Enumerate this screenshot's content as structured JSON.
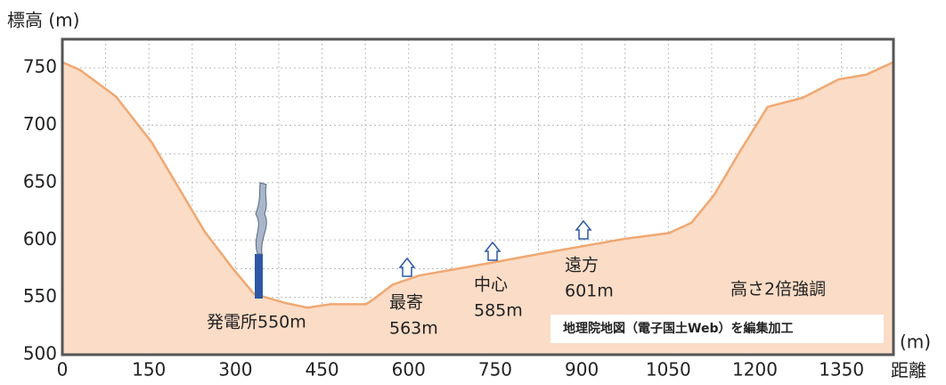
{
  "chart_data": {
    "type": "area",
    "y_label": "標高 (m)",
    "x_unit": "(m)",
    "x_label": "距離",
    "x": [
      0,
      31,
      93,
      155,
      201,
      247,
      294,
      332,
      387,
      425,
      464,
      526,
      541,
      572,
      618,
      742,
      850,
      974,
      1051,
      1090,
      1129,
      1175,
      1222,
      1283,
      1345,
      1392,
      1440
    ],
    "series": [
      {
        "name": "標高",
        "color": "#f0a872",
        "values": [
          755,
          748,
          725,
          685,
          646,
          607,
          576,
          553,
          545,
          541,
          544,
          544,
          549,
          561,
          569,
          580,
          590,
          601,
          606,
          615,
          639,
          678,
          716,
          724,
          740,
          744,
          755
        ]
      }
    ],
    "xlim": [
      0,
      1440
    ],
    "ylim": [
      500,
      775
    ],
    "xticks": [
      0,
      150,
      300,
      450,
      600,
      750,
      900,
      1050,
      1200,
      1350
    ],
    "yticks": [
      500,
      550,
      600,
      650,
      700,
      750
    ],
    "grid": true,
    "annotations": [
      {
        "lines": [
          "発電所550m"
        ]
      },
      {
        "lines": [
          "最寄",
          "563m"
        ]
      },
      {
        "lines": [
          "中心",
          "585m"
        ]
      },
      {
        "lines": [
          "遠方",
          "601m"
        ]
      },
      {
        "lines": [
          "高さ2倍強調"
        ]
      }
    ],
    "source": "地理院地図（電子国土Web）を編集加工"
  }
}
